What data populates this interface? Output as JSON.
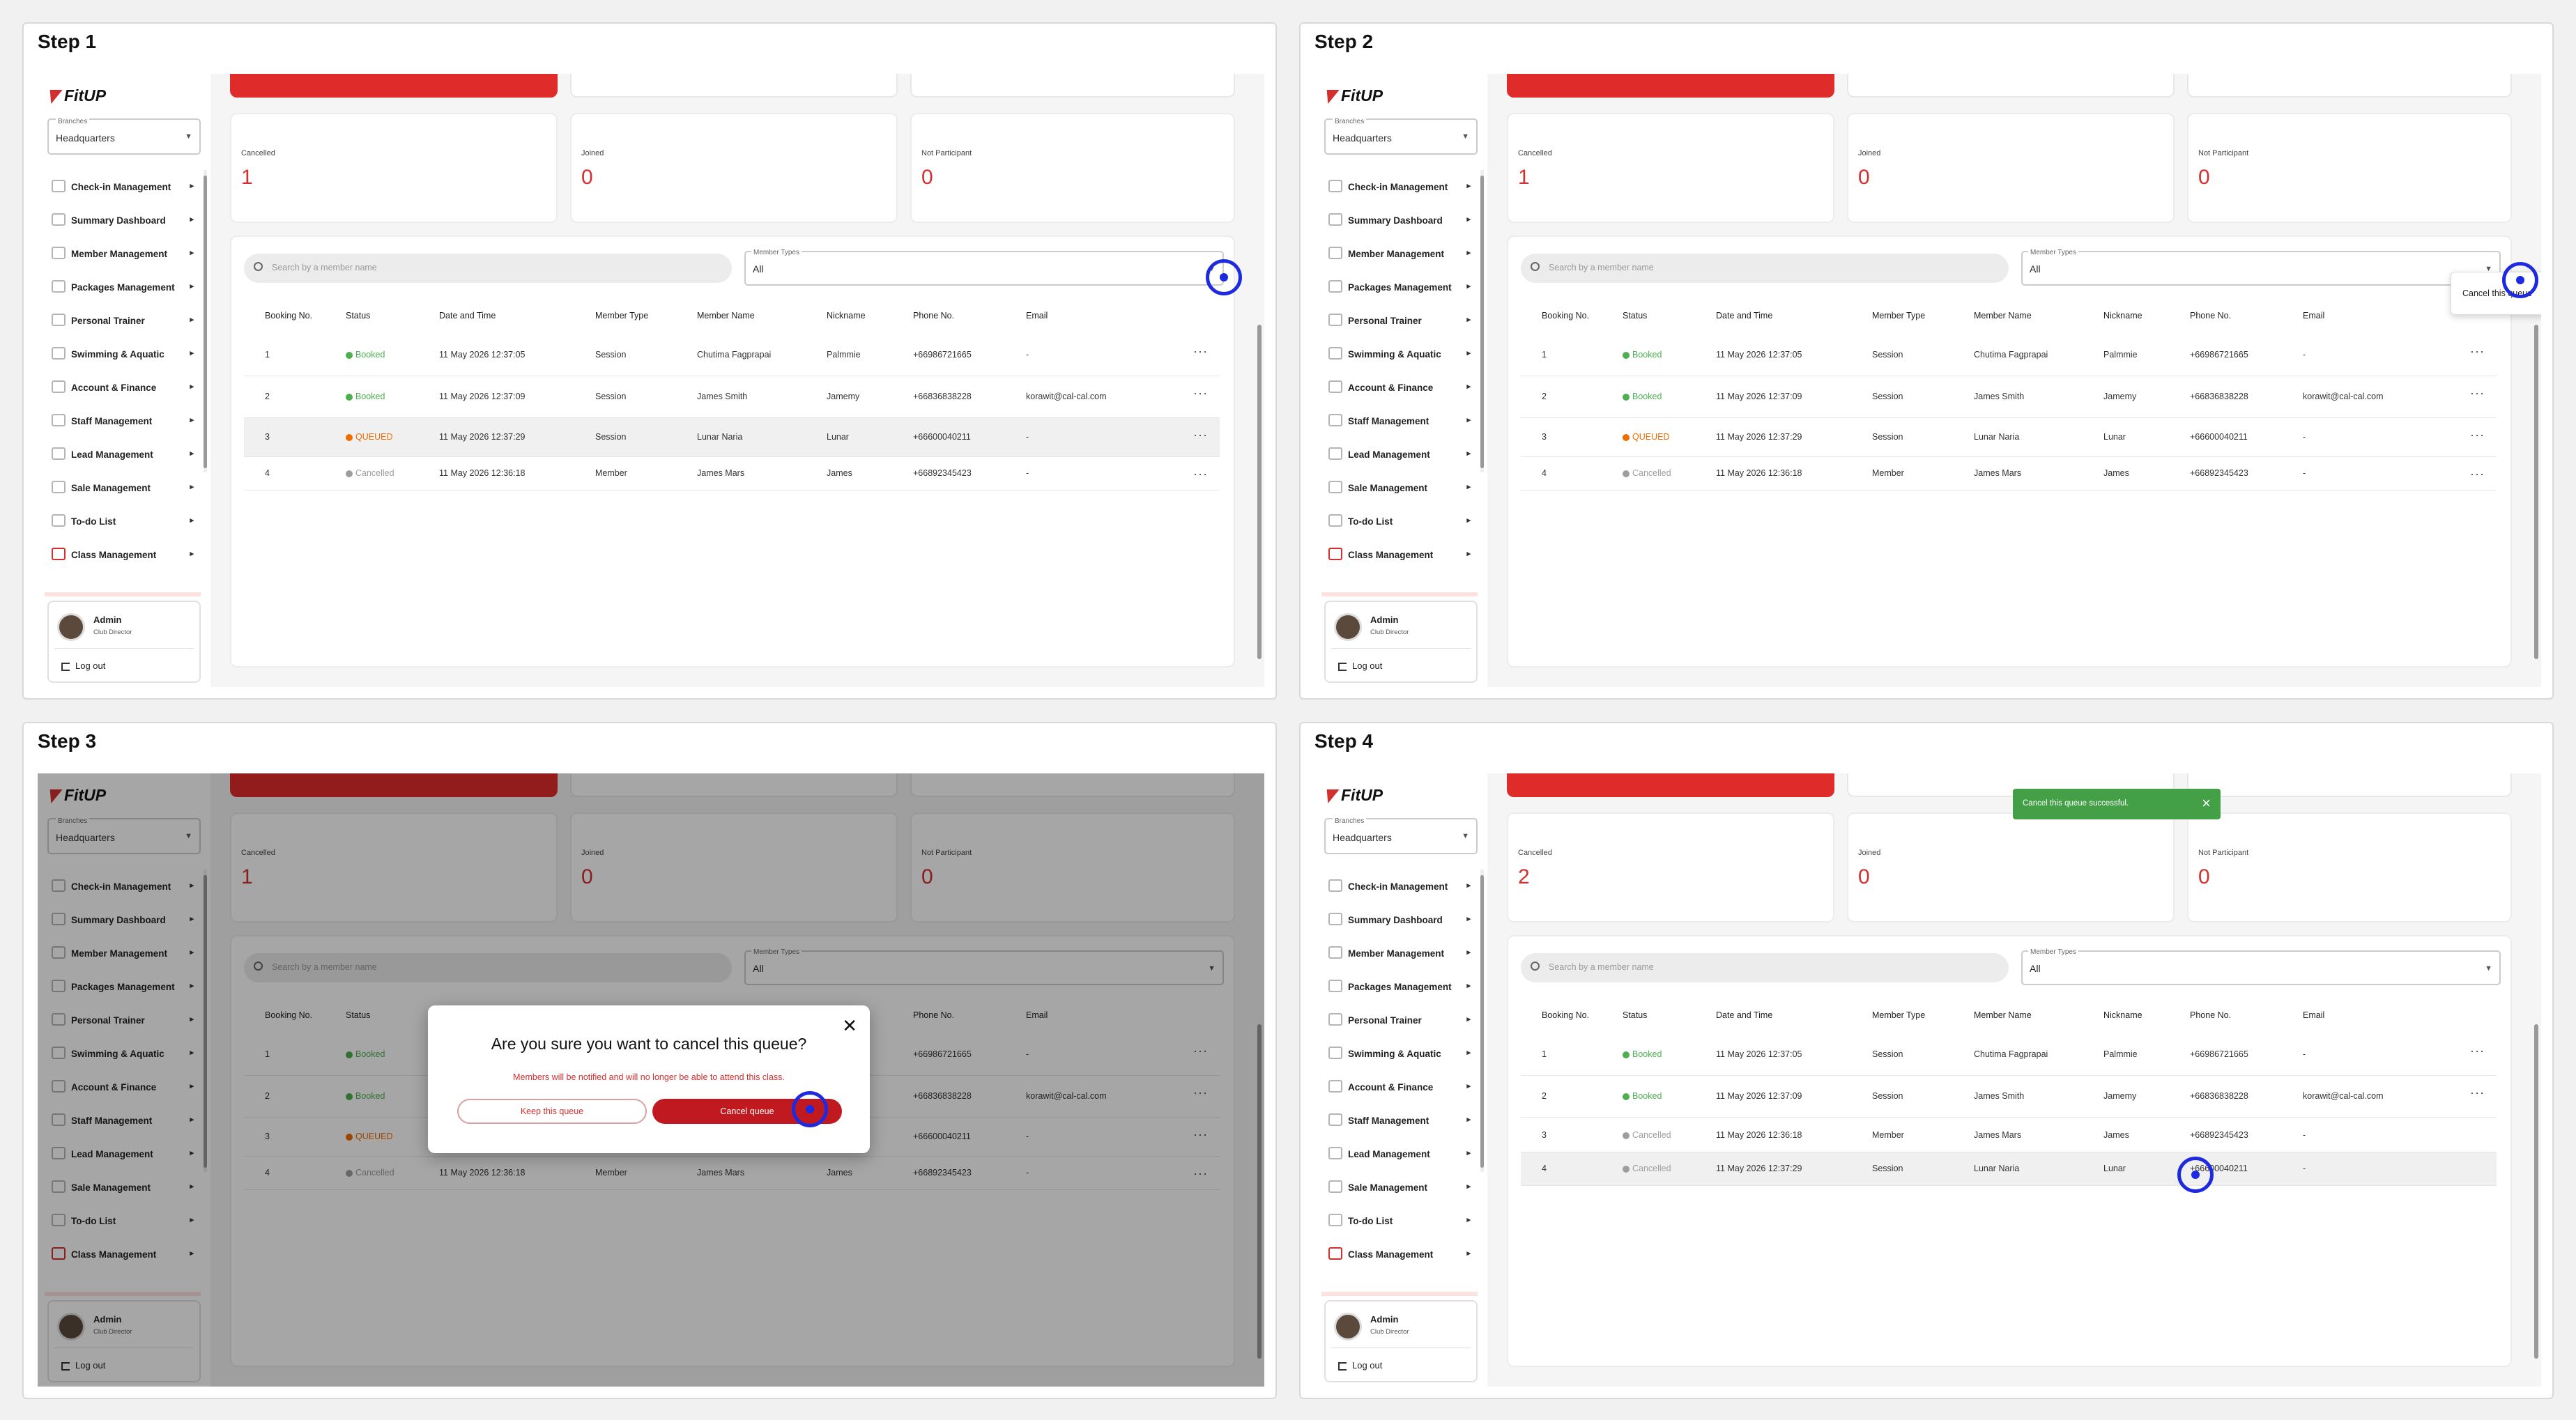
{
  "steps": [
    "Step 1",
    "Step 2",
    "Step 3",
    "Step 4"
  ],
  "app": {
    "logo": "FitUP"
  },
  "sidebar": {
    "branch_label": "Branches",
    "branch_value": "Headquarters",
    "items": [
      {
        "label": "Check-in Management",
        "icon": "checkin-icon"
      },
      {
        "label": "Summary Dashboard",
        "icon": "dashboard-icon"
      },
      {
        "label": "Member Management",
        "icon": "member-icon"
      },
      {
        "label": "Packages Management",
        "icon": "package-icon"
      },
      {
        "label": "Personal Trainer",
        "icon": "trainer-icon"
      },
      {
        "label": "Swimming & Aquatic",
        "icon": "swim-icon"
      },
      {
        "label": "Account & Finance",
        "icon": "finance-icon"
      },
      {
        "label": "Staff Management",
        "icon": "staff-icon"
      },
      {
        "label": "Lead Management",
        "icon": "lead-icon"
      },
      {
        "label": "Sale Management",
        "icon": "sale-icon"
      },
      {
        "label": "To-do List",
        "icon": "todo-icon"
      },
      {
        "label": "Class Management",
        "icon": "class-icon"
      }
    ],
    "user": {
      "name": "Admin",
      "role": "Club Director"
    },
    "logout": "Log out"
  },
  "stats_before": [
    {
      "label": "Cancelled",
      "value": "1"
    },
    {
      "label": "Joined",
      "value": "0"
    },
    {
      "label": "Not Participant",
      "value": "0"
    }
  ],
  "stats_after": [
    {
      "label": "Cancelled",
      "value": "2"
    },
    {
      "label": "Joined",
      "value": "0"
    },
    {
      "label": "Not Participant",
      "value": "0"
    }
  ],
  "search_placeholder": "Search by a member name",
  "member_types": {
    "label": "Member Types",
    "value": "All"
  },
  "columns": [
    "Booking No.",
    "Status",
    "Date and Time",
    "Member Type",
    "Member Name",
    "Nickname",
    "Phone No.",
    "Email"
  ],
  "rows_before": [
    {
      "no": "1",
      "status": "Booked",
      "datetime": "11 May 2026 12:37:05",
      "type": "Session",
      "name": "Chutima Fagprapai",
      "nick": "Palmmie",
      "phone": "+66986721665",
      "email": "-"
    },
    {
      "no": "2",
      "status": "Booked",
      "datetime": "11 May 2026 12:37:09",
      "type": "Session",
      "name": "James Smith",
      "nick": "Jamemy",
      "phone": "+66836838228",
      "email": "korawit@cal-cal.com"
    },
    {
      "no": "3",
      "status": "QUEUED",
      "datetime": "11 May 2026 12:37:29",
      "type": "Session",
      "name": "Lunar Naria",
      "nick": "Lunar",
      "phone": "+66600040211",
      "email": "-"
    },
    {
      "no": "4",
      "status": "Cancelled",
      "datetime": "11 May 2026 12:36:18",
      "type": "Member",
      "name": "James Mars",
      "nick": "James",
      "phone": "+66892345423",
      "email": "-"
    }
  ],
  "rows_after": [
    {
      "no": "1",
      "status": "Booked",
      "datetime": "11 May 2026 12:37:05",
      "type": "Session",
      "name": "Chutima Fagprapai",
      "nick": "Palmmie",
      "phone": "+66986721665",
      "email": "-"
    },
    {
      "no": "2",
      "status": "Booked",
      "datetime": "11 May 2026 12:37:09",
      "type": "Session",
      "name": "James Smith",
      "nick": "Jamemy",
      "phone": "+66836838228",
      "email": "korawit@cal-cal.com"
    },
    {
      "no": "3",
      "status": "Cancelled",
      "datetime": "11 May 2026 12:36:18",
      "type": "Member",
      "name": "James Mars",
      "nick": "James",
      "phone": "+66892345423",
      "email": "-"
    },
    {
      "no": "4",
      "status": "Cancelled",
      "datetime": "11 May 2026 12:37:29",
      "type": "Session",
      "name": "Lunar Naria",
      "nick": "Lunar",
      "phone": "+66600040211",
      "email": "-"
    }
  ],
  "row_menu": {
    "cancel_label": "Cancel this queue"
  },
  "modal": {
    "title": "Are you sure you want to cancel this queue?",
    "subtitle": "Members will be notified and will no longer be able to attend this class.",
    "keep_label": "Keep this queue",
    "confirm_label": "Cancel queue"
  },
  "toast": {
    "message": "Cancel this queue successful."
  },
  "colors": {
    "accent": "#d32f2f",
    "booked": "#4caf50",
    "queued": "#ef6c00",
    "cancelled": "#9e9e9e",
    "toast": "#43a047"
  }
}
